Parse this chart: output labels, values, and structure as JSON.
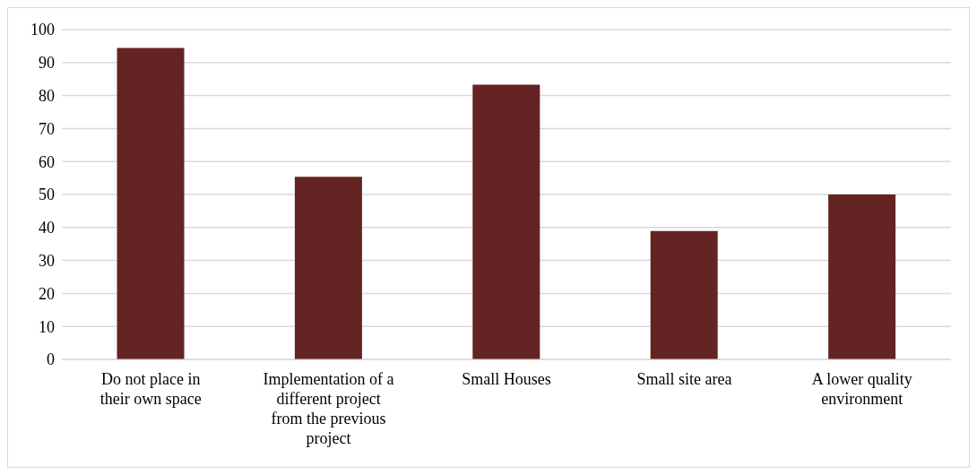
{
  "chart_data": {
    "type": "bar",
    "categories": [
      "Do not place in their own space",
      "Implementation of a different project from the previous project",
      "Small Houses",
      "Small site area",
      "A lower quality environment"
    ],
    "values": [
      94.4,
      55.4,
      83.3,
      38.9,
      50
    ],
    "color": "#632423",
    "ylim": [
      0,
      100
    ],
    "yticks": [
      0,
      10,
      20,
      30,
      40,
      50,
      60,
      70,
      80,
      90,
      100
    ],
    "grid": "y"
  }
}
